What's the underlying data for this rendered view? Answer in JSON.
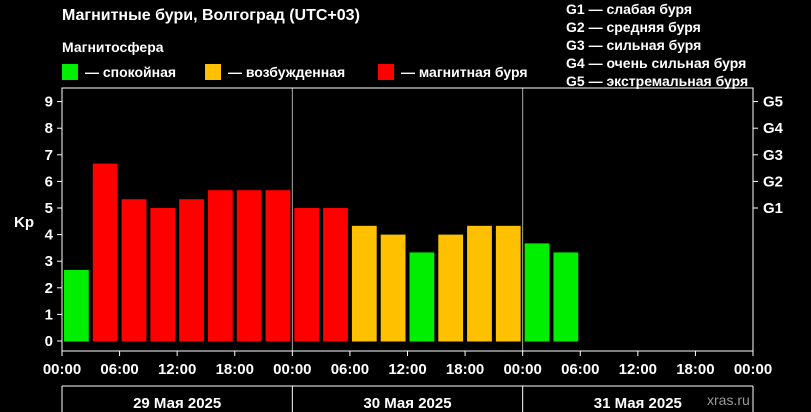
{
  "title": "Магнитные бури, Волгоград (UTC+03)",
  "subtitle": "Магнитосфера",
  "legend": [
    {
      "label": "— спокойная",
      "color": "#00ee00"
    },
    {
      "label": "— возбужденная",
      "color": "#ffc000"
    },
    {
      "label": "— магнитная буря",
      "color": "#ff0000"
    }
  ],
  "storm_scale": [
    "G1 — слабая буря",
    "G2 — средняя буря",
    "G3 — сильная буря",
    "G4 — очень сильная буря",
    "G5 — экстремальная буря"
  ],
  "source": "xras.ru",
  "chart_data": {
    "type": "bar",
    "ylabel": "Kp",
    "ylim": [
      0,
      9
    ],
    "y_ticks": [
      0,
      1,
      2,
      3,
      4,
      5,
      6,
      7,
      8,
      9
    ],
    "g_levels": [
      {
        "label": "G1",
        "value": 5
      },
      {
        "label": "G2",
        "value": 6
      },
      {
        "label": "G3",
        "value": 7
      },
      {
        "label": "G4",
        "value": 8
      },
      {
        "label": "G5",
        "value": 9
      }
    ],
    "x_tick_labels": [
      "00:00",
      "06:00",
      "12:00",
      "18:00",
      "00:00",
      "06:00",
      "12:00",
      "18:00",
      "00:00",
      "06:00",
      "12:00",
      "18:00",
      "00:00"
    ],
    "days": [
      "29 Мая 2025",
      "30 Мая 2025",
      "31 Мая 2025"
    ],
    "interval_hours": 3,
    "values": [
      2.67,
      6.67,
      5.33,
      5.0,
      5.33,
      5.67,
      5.67,
      5.67,
      5.0,
      5.0,
      4.33,
      4.0,
      3.33,
      4.0,
      4.33,
      4.33,
      3.67,
      3.33
    ],
    "colors": [
      "#00ee00",
      "#ff0000",
      "#ff0000",
      "#ff0000",
      "#ff0000",
      "#ff0000",
      "#ff0000",
      "#ff0000",
      "#ff0000",
      "#ff0000",
      "#ffc000",
      "#ffc000",
      "#00ee00",
      "#ffc000",
      "#ffc000",
      "#ffc000",
      "#00ee00",
      "#00ee00"
    ],
    "grid": false
  }
}
